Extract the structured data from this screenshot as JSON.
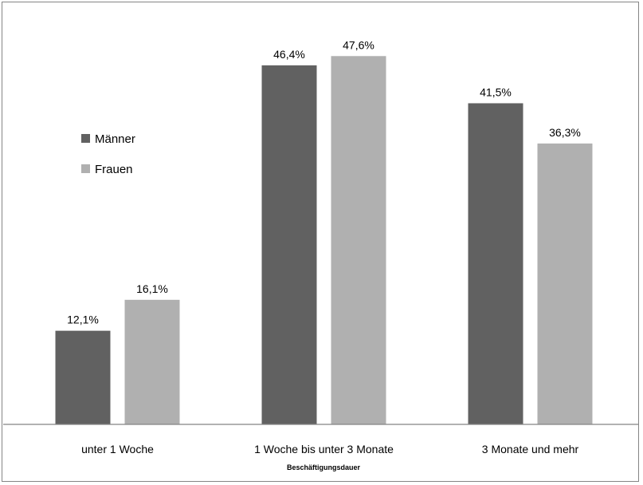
{
  "chart_data": {
    "type": "bar",
    "categories": [
      "unter 1 Woche",
      "1 Woche bis unter 3 Monate",
      "3 Monate und mehr"
    ],
    "series": [
      {
        "name": "Männer",
        "values": [
          12.1,
          46.4,
          41.5
        ],
        "labels": [
          "12,1%",
          "46,4%",
          "41,5%"
        ],
        "color": "#616161"
      },
      {
        "name": "Frauen",
        "values": [
          16.1,
          47.6,
          36.3
        ],
        "labels": [
          "16,1%",
          "47,6%",
          "36,3%"
        ],
        "color": "#b0b0b0"
      }
    ],
    "title": "",
    "xlabel": "Beschäftigungsdauer",
    "ylabel": "",
    "ylim": [
      0,
      50
    ],
    "grid": false,
    "legend": "left"
  }
}
